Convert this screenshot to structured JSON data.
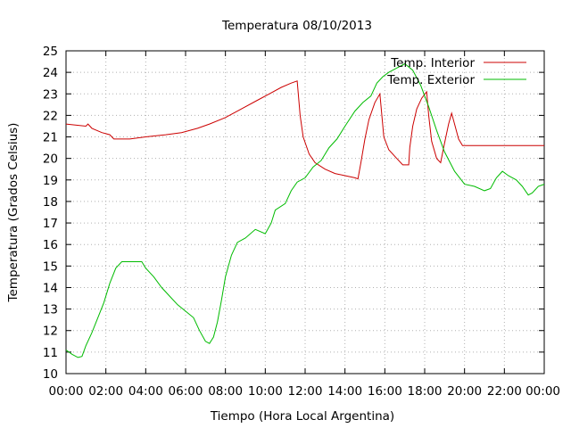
{
  "chart_data": {
    "type": "line",
    "title": "Temperatura 08/10/2013",
    "xlabel": "Tiempo (Hora Local Argentina)",
    "ylabel": "Temperatura (Grados Celsius)",
    "xlim": [
      0,
      24
    ],
    "ylim": [
      10,
      25
    ],
    "x_ticks": [
      "00:00",
      "02:00",
      "04:00",
      "06:00",
      "08:00",
      "10:00",
      "12:00",
      "14:00",
      "16:00",
      "18:00",
      "20:00",
      "22:00",
      "00:00"
    ],
    "y_ticks": [
      "10",
      "11",
      "12",
      "13",
      "14",
      "15",
      "16",
      "17",
      "18",
      "19",
      "20",
      "21",
      "22",
      "23",
      "24",
      "25"
    ],
    "grid": true,
    "legend_position": "top-right",
    "series": [
      {
        "name": "Temp. Interior",
        "color": "#cc0000",
        "points": [
          [
            0.0,
            21.6
          ],
          [
            1.0,
            21.5
          ],
          [
            1.1,
            21.6
          ],
          [
            1.3,
            21.4
          ],
          [
            1.8,
            21.2
          ],
          [
            2.2,
            21.1
          ],
          [
            2.4,
            20.9
          ],
          [
            3.2,
            20.9
          ],
          [
            4.0,
            21.0
          ],
          [
            5.0,
            21.1
          ],
          [
            5.8,
            21.2
          ],
          [
            6.6,
            21.4
          ],
          [
            7.2,
            21.6
          ],
          [
            8.0,
            21.9
          ],
          [
            8.8,
            22.3
          ],
          [
            9.6,
            22.7
          ],
          [
            10.2,
            23.0
          ],
          [
            10.8,
            23.3
          ],
          [
            11.3,
            23.5
          ],
          [
            11.6,
            23.6
          ],
          [
            11.75,
            22.0
          ],
          [
            11.9,
            21.0
          ],
          [
            12.2,
            20.2
          ],
          [
            12.5,
            19.8
          ],
          [
            13.0,
            19.5
          ],
          [
            13.5,
            19.3
          ],
          [
            14.0,
            19.2
          ],
          [
            14.5,
            19.1
          ],
          [
            14.65,
            19.05
          ],
          [
            14.8,
            19.8
          ],
          [
            15.0,
            20.9
          ],
          [
            15.2,
            21.8
          ],
          [
            15.5,
            22.6
          ],
          [
            15.75,
            23.0
          ],
          [
            15.85,
            22.0
          ],
          [
            15.95,
            21.0
          ],
          [
            16.2,
            20.4
          ],
          [
            16.6,
            20.0
          ],
          [
            16.9,
            19.7
          ],
          [
            17.2,
            19.7
          ],
          [
            17.25,
            20.5
          ],
          [
            17.4,
            21.5
          ],
          [
            17.6,
            22.3
          ],
          [
            17.85,
            22.8
          ],
          [
            18.1,
            23.1
          ],
          [
            18.2,
            22.0
          ],
          [
            18.35,
            20.8
          ],
          [
            18.6,
            20.0
          ],
          [
            18.8,
            19.8
          ],
          [
            18.95,
            20.5
          ],
          [
            19.2,
            21.6
          ],
          [
            19.35,
            22.1
          ],
          [
            19.5,
            21.6
          ],
          [
            19.7,
            20.9
          ],
          [
            19.9,
            20.6
          ],
          [
            21.0,
            20.6
          ],
          [
            24.0,
            20.6
          ]
        ]
      },
      {
        "name": "Temp. Exterior",
        "color": "#00bb00",
        "points": [
          [
            0.0,
            11.1
          ],
          [
            0.3,
            10.9
          ],
          [
            0.6,
            10.75
          ],
          [
            0.8,
            10.8
          ],
          [
            1.0,
            11.3
          ],
          [
            1.3,
            11.9
          ],
          [
            1.6,
            12.6
          ],
          [
            1.9,
            13.3
          ],
          [
            2.2,
            14.2
          ],
          [
            2.5,
            14.9
          ],
          [
            2.8,
            15.2
          ],
          [
            3.3,
            15.2
          ],
          [
            3.8,
            15.2
          ],
          [
            4.0,
            14.9
          ],
          [
            4.4,
            14.5
          ],
          [
            4.8,
            14.0
          ],
          [
            5.2,
            13.6
          ],
          [
            5.6,
            13.2
          ],
          [
            6.0,
            12.9
          ],
          [
            6.4,
            12.6
          ],
          [
            6.7,
            12.0
          ],
          [
            7.0,
            11.5
          ],
          [
            7.2,
            11.4
          ],
          [
            7.4,
            11.7
          ],
          [
            7.6,
            12.4
          ],
          [
            7.8,
            13.4
          ],
          [
            8.0,
            14.5
          ],
          [
            8.3,
            15.5
          ],
          [
            8.6,
            16.1
          ],
          [
            9.0,
            16.3
          ],
          [
            9.5,
            16.7
          ],
          [
            10.0,
            16.5
          ],
          [
            10.3,
            17.0
          ],
          [
            10.5,
            17.6
          ],
          [
            11.0,
            17.9
          ],
          [
            11.3,
            18.5
          ],
          [
            11.6,
            18.9
          ],
          [
            12.0,
            19.1
          ],
          [
            12.4,
            19.6
          ],
          [
            12.8,
            19.9
          ],
          [
            13.2,
            20.5
          ],
          [
            13.6,
            20.9
          ],
          [
            14.0,
            21.5
          ],
          [
            14.5,
            22.2
          ],
          [
            14.9,
            22.6
          ],
          [
            15.3,
            22.9
          ],
          [
            15.6,
            23.5
          ],
          [
            15.9,
            23.8
          ],
          [
            16.2,
            24.0
          ],
          [
            16.6,
            24.2
          ],
          [
            17.0,
            24.4
          ],
          [
            17.4,
            24.1
          ],
          [
            17.8,
            23.4
          ],
          [
            18.2,
            22.4
          ],
          [
            18.6,
            21.3
          ],
          [
            19.0,
            20.3
          ],
          [
            19.5,
            19.4
          ],
          [
            20.0,
            18.8
          ],
          [
            20.5,
            18.7
          ],
          [
            21.0,
            18.5
          ],
          [
            21.3,
            18.6
          ],
          [
            21.6,
            19.1
          ],
          [
            21.9,
            19.4
          ],
          [
            22.2,
            19.2
          ],
          [
            22.6,
            19.0
          ],
          [
            22.9,
            18.7
          ],
          [
            23.2,
            18.3
          ],
          [
            23.4,
            18.4
          ],
          [
            23.7,
            18.7
          ],
          [
            24.0,
            18.8
          ]
        ]
      }
    ]
  }
}
